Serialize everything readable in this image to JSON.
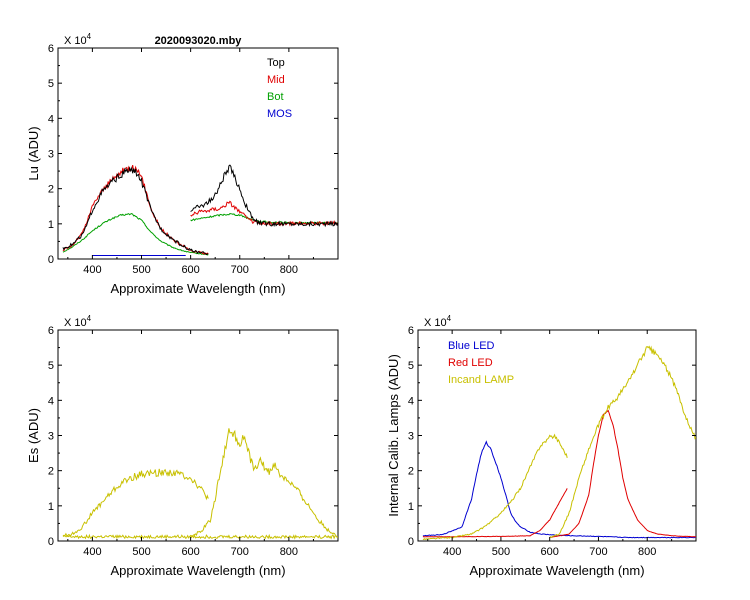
{
  "chart_data": [
    {
      "id": "lu",
      "type": "line",
      "title": "2020093020.mby",
      "xlabel": "Approximate Wavelength (nm)",
      "ylabel": "Lu (ADU)",
      "multiplier": {
        "base": "X 10",
        "exp": "4"
      },
      "xlim": [
        330,
        900
      ],
      "ylim": [
        0,
        6
      ],
      "xticks": [
        {
          "value": 400,
          "label": "400"
        },
        {
          "value": 500,
          "label": "500"
        },
        {
          "value": 600,
          "label": "600"
        },
        {
          "value": 700,
          "label": "700"
        },
        {
          "value": 800,
          "label": "800"
        }
      ],
      "yticks": [
        {
          "value": 0,
          "label": "0"
        },
        {
          "value": 1,
          "label": "1"
        },
        {
          "value": 2,
          "label": "2"
        },
        {
          "value": 3,
          "label": "3"
        },
        {
          "value": 4,
          "label": "4"
        },
        {
          "value": 5,
          "label": "5"
        },
        {
          "value": 6,
          "label": "6"
        }
      ],
      "legend": [
        {
          "label": "Top",
          "color": "#000000"
        },
        {
          "label": "Mid",
          "color": "#e00000"
        },
        {
          "label": "Bot",
          "color": "#00a000"
        },
        {
          "label": "MOS",
          "color": "#0000d0"
        }
      ],
      "series": [
        {
          "name": "Bot",
          "color": "#00a000",
          "noise": 0.03,
          "segments": [
            {
              "x": [
                340,
                360,
                380,
                400,
                420,
                440,
                460,
                480,
                500,
                520,
                540,
                560,
                580,
                600,
                620,
                636
              ],
              "y": [
                0.2,
                0.35,
                0.55,
                0.8,
                1.0,
                1.15,
                1.25,
                1.28,
                1.1,
                0.75,
                0.5,
                0.35,
                0.25,
                0.18,
                0.15,
                0.12
              ]
            },
            {
              "x": [
                600,
                620,
                640,
                660,
                680,
                700,
                720,
                740,
                760,
                800,
                850,
                900
              ],
              "y": [
                1.1,
                1.15,
                1.2,
                1.25,
                1.28,
                1.25,
                1.15,
                1.07,
                1.05,
                1.03,
                1.03,
                1.02
              ]
            }
          ]
        },
        {
          "name": "Mid",
          "color": "#e00000",
          "noise": 0.07,
          "segments": [
            {
              "x": [
                340,
                360,
                380,
                390,
                400,
                410,
                420,
                440,
                460,
                470,
                480,
                490,
                500,
                510,
                520,
                540,
                560,
                580,
                600,
                620,
                636
              ],
              "y": [
                0.25,
                0.4,
                0.75,
                1.1,
                1.5,
                1.75,
                1.95,
                2.25,
                2.5,
                2.58,
                2.6,
                2.55,
                2.3,
                1.9,
                1.4,
                0.85,
                0.6,
                0.4,
                0.25,
                0.18,
                0.15
              ]
            },
            {
              "x": [
                600,
                620,
                640,
                660,
                680,
                700,
                720,
                740,
                760,
                800,
                850,
                900
              ],
              "y": [
                1.25,
                1.35,
                1.4,
                1.45,
                1.6,
                1.35,
                1.1,
                1.0,
                1.0,
                1.0,
                1.02,
                1.02
              ]
            }
          ]
        },
        {
          "name": "Top",
          "color": "#000000",
          "noise": 0.08,
          "segments": [
            {
              "x": [
                340,
                360,
                380,
                390,
                400,
                410,
                420,
                440,
                460,
                470,
                480,
                490,
                500,
                510,
                520,
                540,
                560,
                580,
                600,
                620,
                636
              ],
              "y": [
                0.3,
                0.42,
                0.7,
                1.0,
                1.4,
                1.65,
                1.9,
                2.2,
                2.4,
                2.5,
                2.52,
                2.45,
                2.2,
                1.8,
                1.35,
                0.85,
                0.6,
                0.4,
                0.25,
                0.18,
                0.15
              ]
            },
            {
              "x": [
                600,
                620,
                640,
                650,
                660,
                670,
                680,
                690,
                700,
                710,
                720,
                730,
                740,
                760,
                800,
                850,
                900
              ],
              "y": [
                1.4,
                1.5,
                1.65,
                1.8,
                2.1,
                2.4,
                2.6,
                2.3,
                2.0,
                1.6,
                1.3,
                1.1,
                1.02,
                1.0,
                1.0,
                1.0,
                1.0
              ]
            }
          ]
        },
        {
          "name": "MOS",
          "color": "#0000d0",
          "noise": 0,
          "segments": [
            {
              "x": [
                400,
                590
              ],
              "y": [
                0.1,
                0.1
              ]
            }
          ]
        }
      ]
    },
    {
      "id": "es",
      "type": "line",
      "title": "",
      "xlabel": "Approximate Wavelength (nm)",
      "ylabel": "Es (ADU)",
      "multiplier": {
        "base": "X 10",
        "exp": "4"
      },
      "xlim": [
        330,
        900
      ],
      "ylim": [
        0,
        6
      ],
      "xticks": [
        {
          "value": 400,
          "label": "400"
        },
        {
          "value": 500,
          "label": "500"
        },
        {
          "value": 600,
          "label": "600"
        },
        {
          "value": 700,
          "label": "700"
        },
        {
          "value": 800,
          "label": "800"
        }
      ],
      "yticks": [
        {
          "value": 0,
          "label": "0"
        },
        {
          "value": 1,
          "label": "1"
        },
        {
          "value": 2,
          "label": "2"
        },
        {
          "value": 3,
          "label": "3"
        },
        {
          "value": 4,
          "label": "4"
        },
        {
          "value": 5,
          "label": "5"
        },
        {
          "value": 6,
          "label": "6"
        }
      ],
      "legend": [],
      "series": [
        {
          "name": "Es",
          "color": "#c8c000",
          "noise": 0.1,
          "segments": [
            {
              "x": [
                340,
                360,
                380,
                390,
                400,
                420,
                440,
                460,
                480,
                500,
                520,
                540,
                560,
                580,
                600,
                620,
                636
              ],
              "y": [
                0.15,
                0.2,
                0.4,
                0.6,
                0.8,
                1.1,
                1.4,
                1.65,
                1.8,
                1.9,
                1.93,
                1.95,
                1.95,
                1.9,
                1.8,
                1.5,
                1.2
              ]
            },
            {
              "x": [
                340,
                900
              ],
              "y": [
                0.12,
                0.12
              ]
            },
            {
              "x": [
                600,
                620,
                640,
                650,
                660,
                670,
                680,
                690,
                700,
                710,
                720,
                730,
                740,
                750,
                760,
                770,
                780,
                800,
                820,
                840,
                860,
                880,
                895
              ],
              "y": [
                0.15,
                0.25,
                0.6,
                1.2,
                2.0,
                2.6,
                3.2,
                3.0,
                2.8,
                2.95,
                2.4,
                2.0,
                2.3,
                2.1,
                1.95,
                2.2,
                1.9,
                1.7,
                1.4,
                1.0,
                0.6,
                0.3,
                0.2
              ]
            }
          ]
        }
      ]
    },
    {
      "id": "lamps",
      "type": "line",
      "title": "",
      "xlabel": "Approximate Wavelength (nm)",
      "ylabel": "Internal Calib. Lamps  (ADU)",
      "multiplier": {
        "base": "X 10",
        "exp": "4"
      },
      "xlim": [
        330,
        900
      ],
      "ylim": [
        0,
        6
      ],
      "xticks": [
        {
          "value": 400,
          "label": "400"
        },
        {
          "value": 500,
          "label": "500"
        },
        {
          "value": 600,
          "label": "600"
        },
        {
          "value": 700,
          "label": "700"
        },
        {
          "value": 800,
          "label": "800"
        }
      ],
      "yticks": [
        {
          "value": 0,
          "label": "0"
        },
        {
          "value": 1,
          "label": "1"
        },
        {
          "value": 2,
          "label": "2"
        },
        {
          "value": 3,
          "label": "3"
        },
        {
          "value": 4,
          "label": "4"
        },
        {
          "value": 5,
          "label": "5"
        },
        {
          "value": 6,
          "label": "6"
        }
      ],
      "legend": [
        {
          "label": "Blue LED",
          "color": "#0000d0"
        },
        {
          "label": "Red LED",
          "color": "#e00000"
        },
        {
          "label": "Incand LAMP",
          "color": "#c8c000"
        }
      ],
      "series": [
        {
          "name": "Blue LED",
          "color": "#0000d0",
          "noise": 0.02,
          "segments": [
            {
              "x": [
                340,
                380,
                420,
                440,
                450,
                460,
                470,
                480,
                490,
                500,
                510,
                520,
                530,
                540,
                560,
                580,
                600,
                620,
                640,
                680,
                720,
                760,
                800,
                850,
                900
              ],
              "y": [
                0.15,
                0.18,
                0.4,
                1.2,
                1.9,
                2.5,
                2.8,
                2.6,
                2.2,
                1.8,
                1.3,
                0.8,
                0.55,
                0.4,
                0.25,
                0.2,
                0.18,
                0.16,
                0.15,
                0.14,
                0.12,
                0.1,
                0.1,
                0.1,
                0.1
              ]
            }
          ]
        },
        {
          "name": "Red LED",
          "color": "#e00000",
          "noise": 0.01,
          "segments": [
            {
              "x": [
                340,
                400,
                500,
                560,
                580,
                600,
                620,
                636
              ],
              "y": [
                0.12,
                0.12,
                0.13,
                0.15,
                0.3,
                0.6,
                1.1,
                1.5
              ]
            },
            {
              "x": [
                600,
                640,
                660,
                680,
                690,
                700,
                710,
                720,
                730,
                740,
                750,
                760,
                780,
                800,
                820,
                850,
                880,
                900
              ],
              "y": [
                0.1,
                0.2,
                0.5,
                1.3,
                2.2,
                3.0,
                3.6,
                3.7,
                3.3,
                2.6,
                1.8,
                1.2,
                0.6,
                0.3,
                0.2,
                0.15,
                0.13,
                0.12
              ]
            }
          ]
        },
        {
          "name": "Incand LAMP",
          "color": "#c8c000",
          "noise": 0.04,
          "segments": [
            {
              "x": [
                340,
                400,
                440,
                460,
                480,
                500,
                520,
                540,
                560,
                580,
                600,
                610,
                620,
                636
              ],
              "y": [
                0.05,
                0.1,
                0.2,
                0.35,
                0.55,
                0.8,
                1.1,
                1.5,
                2.1,
                2.7,
                2.95,
                3.0,
                2.8,
                2.4
              ]
            },
            {
              "x": [
                600,
                620,
                640,
                660,
                680,
                700,
                720,
                740,
                760,
                780,
                800,
                820,
                840,
                860,
                880,
                900
              ],
              "y": [
                0.1,
                0.2,
                0.8,
                1.8,
                2.6,
                3.3,
                3.8,
                4.1,
                4.5,
                5.0,
                5.5,
                5.3,
                4.9,
                4.3,
                3.5,
                2.9
              ]
            }
          ]
        }
      ]
    }
  ]
}
